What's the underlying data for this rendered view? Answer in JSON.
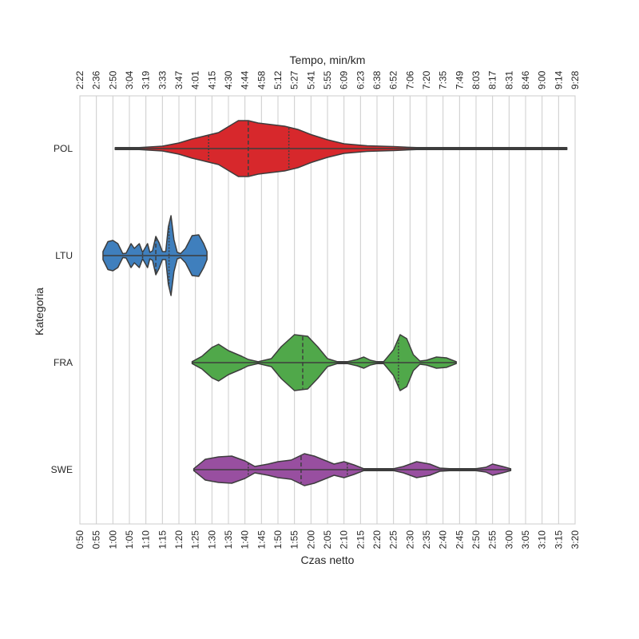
{
  "chart_data": {
    "type": "violin",
    "ylabel": "Kategoria",
    "xlabel_bottom": "Czas netto",
    "xlabel_top": "Tempo, min/km",
    "x_unit": "minutes",
    "xlim": [
      50,
      200
    ],
    "grid": true,
    "bottom_ticks": [
      "0:50",
      "0:55",
      "1:00",
      "1:05",
      "1:10",
      "1:15",
      "1:20",
      "1:25",
      "1:30",
      "1:35",
      "1:40",
      "1:45",
      "1:50",
      "1:55",
      "2:00",
      "2:05",
      "2:10",
      "2:15",
      "2:20",
      "2:25",
      "2:30",
      "2:35",
      "2:40",
      "2:45",
      "2:50",
      "2:55",
      "3:00",
      "3:05",
      "3:10",
      "3:15",
      "3:20"
    ],
    "top_ticks": [
      "2:22",
      "2:36",
      "2:50",
      "3:04",
      "3:19",
      "3:33",
      "3:47",
      "4:01",
      "4:15",
      "4:30",
      "4:44",
      "4:58",
      "5:12",
      "5:27",
      "5:41",
      "5:55",
      "6:09",
      "6:23",
      "6:38",
      "6:52",
      "7:06",
      "7:20",
      "7:35",
      "7:49",
      "8:03",
      "8:17",
      "8:31",
      "8:46",
      "9:00",
      "9:14",
      "9:28"
    ],
    "categories": [
      "POL",
      "LTU",
      "FRA",
      "SWE"
    ],
    "series": [
      {
        "category": "POL",
        "color": "#d7282c",
        "min": 60.7,
        "max": 197.5,
        "quartiles": [
          89.0,
          101.0,
          113.3
        ],
        "density": [
          [
            60.7,
            0.0
          ],
          [
            68,
            0.02
          ],
          [
            75,
            0.06
          ],
          [
            80,
            0.14
          ],
          [
            84,
            0.24
          ],
          [
            88,
            0.32
          ],
          [
            92,
            0.4
          ],
          [
            95,
            0.55
          ],
          [
            98,
            0.7
          ],
          [
            101,
            0.7
          ],
          [
            104,
            0.64
          ],
          [
            108,
            0.6
          ],
          [
            112,
            0.56
          ],
          [
            116,
            0.48
          ],
          [
            120,
            0.35
          ],
          [
            125,
            0.22
          ],
          [
            130,
            0.12
          ],
          [
            137,
            0.07
          ],
          [
            145,
            0.05
          ],
          [
            152,
            0.02
          ],
          [
            165,
            0.008
          ],
          [
            197.5,
            0.0
          ]
        ]
      },
      {
        "category": "LTU",
        "color": "#3f7fbd",
        "min": 57.0,
        "max": 88.5,
        "quartiles": [
          69.0,
          73.0,
          77.0
        ],
        "density": [
          [
            57.0,
            0.1
          ],
          [
            58.5,
            0.35
          ],
          [
            60,
            0.38
          ],
          [
            61.5,
            0.3
          ],
          [
            63,
            0.05
          ],
          [
            64,
            0.06
          ],
          [
            65.5,
            0.3
          ],
          [
            66.5,
            0.18
          ],
          [
            68,
            0.3
          ],
          [
            69,
            0.08
          ],
          [
            70.5,
            0.3
          ],
          [
            71.2,
            0.08
          ],
          [
            72,
            0.12
          ],
          [
            73,
            0.48
          ],
          [
            74,
            0.32
          ],
          [
            75,
            0.1
          ],
          [
            76,
            0.1
          ],
          [
            76.8,
            0.72
          ],
          [
            77.6,
            1.0
          ],
          [
            78.5,
            0.4
          ],
          [
            79.5,
            0.08
          ],
          [
            80.5,
            0.05
          ],
          [
            82,
            0.18
          ],
          [
            84,
            0.5
          ],
          [
            86,
            0.52
          ],
          [
            87.5,
            0.3
          ],
          [
            88.5,
            0.1
          ]
        ]
      },
      {
        "category": "FRA",
        "color": "#50a84a",
        "min": 84.0,
        "max": 164.0,
        "quartiles": [
          null,
          117.5,
          146.5
        ],
        "density": [
          [
            84,
            0.02
          ],
          [
            87,
            0.16
          ],
          [
            90,
            0.38
          ],
          [
            92,
            0.46
          ],
          [
            95,
            0.3
          ],
          [
            99,
            0.16
          ],
          [
            101,
            0.08
          ],
          [
            104,
            0.02
          ],
          [
            108,
            0.1
          ],
          [
            111,
            0.4
          ],
          [
            115,
            0.7
          ],
          [
            119,
            0.66
          ],
          [
            122,
            0.4
          ],
          [
            125,
            0.1
          ],
          [
            128,
            0.02
          ],
          [
            131,
            0.02
          ],
          [
            134,
            0.08
          ],
          [
            136,
            0.14
          ],
          [
            138,
            0.06
          ],
          [
            140,
            0.02
          ],
          [
            142,
            0.02
          ],
          [
            145,
            0.32
          ],
          [
            147,
            0.7
          ],
          [
            149,
            0.6
          ],
          [
            151,
            0.2
          ],
          [
            153,
            0.04
          ],
          [
            155,
            0.06
          ],
          [
            158,
            0.14
          ],
          [
            161,
            0.12
          ],
          [
            164,
            0.02
          ]
        ]
      },
      {
        "category": "SWE",
        "color": "#984fa0",
        "min": 84.5,
        "max": 180.5,
        "quartiles": [
          101.0,
          117.0,
          131.0
        ],
        "density": [
          [
            84.5,
            0.02
          ],
          [
            88,
            0.26
          ],
          [
            92,
            0.32
          ],
          [
            96,
            0.34
          ],
          [
            100,
            0.22
          ],
          [
            103,
            0.08
          ],
          [
            107,
            0.14
          ],
          [
            110,
            0.2
          ],
          [
            114,
            0.24
          ],
          [
            118,
            0.4
          ],
          [
            121,
            0.34
          ],
          [
            124,
            0.24
          ],
          [
            127,
            0.14
          ],
          [
            130,
            0.2
          ],
          [
            133,
            0.12
          ],
          [
            136,
            0.02
          ],
          [
            140,
            0.0
          ],
          [
            145,
            0.0
          ],
          [
            148,
            0.08
          ],
          [
            152,
            0.2
          ],
          [
            156,
            0.14
          ],
          [
            159,
            0.04
          ],
          [
            162,
            0.0
          ],
          [
            167,
            0.0
          ],
          [
            170,
            0.0
          ],
          [
            173,
            0.06
          ],
          [
            175,
            0.14
          ],
          [
            178,
            0.08
          ],
          [
            180.5,
            0.02
          ]
        ]
      }
    ]
  }
}
